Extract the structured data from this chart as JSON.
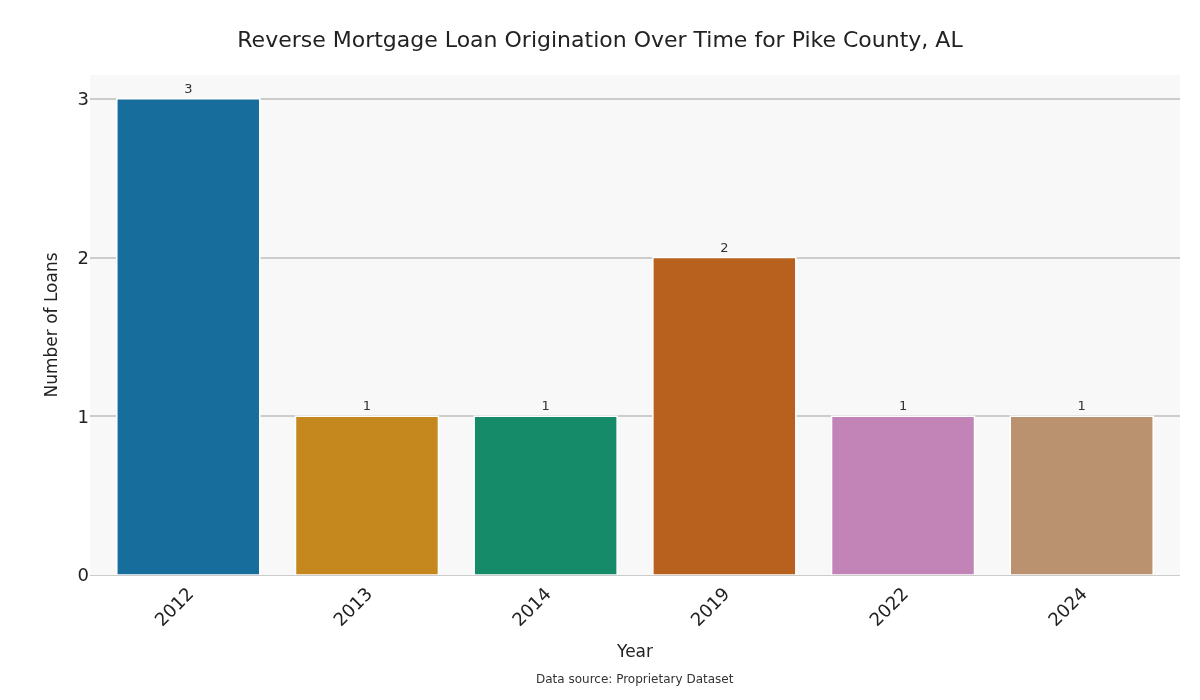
{
  "chart_data": {
    "type": "bar",
    "title": "Reverse Mortgage Loan Origination Over Time for Pike County, AL",
    "xlabel": "Year",
    "ylabel": "Number of Loans",
    "categories": [
      "2012",
      "2013",
      "2014",
      "2019",
      "2022",
      "2024"
    ],
    "values": [
      3,
      1,
      1,
      2,
      1,
      1
    ],
    "colors": [
      "#176d9c",
      "#c4881f",
      "#168b6a",
      "#b8601e",
      "#c283b7",
      "#bb9270"
    ],
    "ylim": [
      0,
      3.15
    ],
    "yticks": [
      0,
      1,
      2,
      3
    ],
    "grid": "y",
    "data_labels": true,
    "annotations": [
      "Data source: Proprietary Dataset"
    ]
  }
}
